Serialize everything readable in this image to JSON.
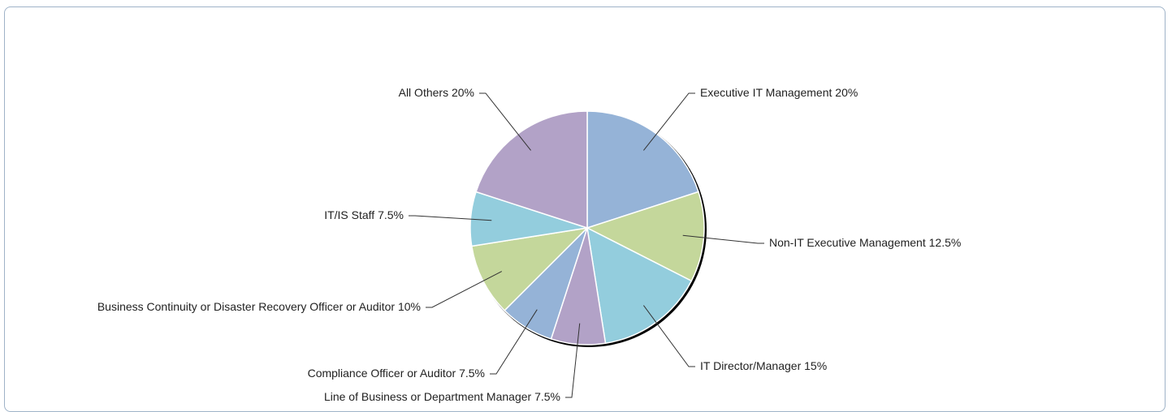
{
  "chart_data": {
    "type": "pie",
    "categories": [
      "Executive IT Management",
      "Non-IT Executive Management",
      "IT Director/Manager",
      "Line of Business or Department Manager",
      "Compliance Officer or Auditor",
      "Business Continuity or Disaster Recovery Officer or Auditor",
      "IT/IS Staff",
      "All Others"
    ],
    "values": [
      20,
      12.5,
      15,
      7.5,
      7.5,
      10,
      7.5,
      20
    ],
    "value_labels": [
      "20%",
      "12.5%",
      "15%",
      "7.5%",
      "7.5%",
      "10%",
      "7.5%",
      "20%"
    ],
    "colors": [
      "#95b3d7",
      "#c4d79b",
      "#93cddd",
      "#b2a2c7",
      "#95b3d7",
      "#c4d79b",
      "#93cddd",
      "#b2a2c7"
    ]
  }
}
